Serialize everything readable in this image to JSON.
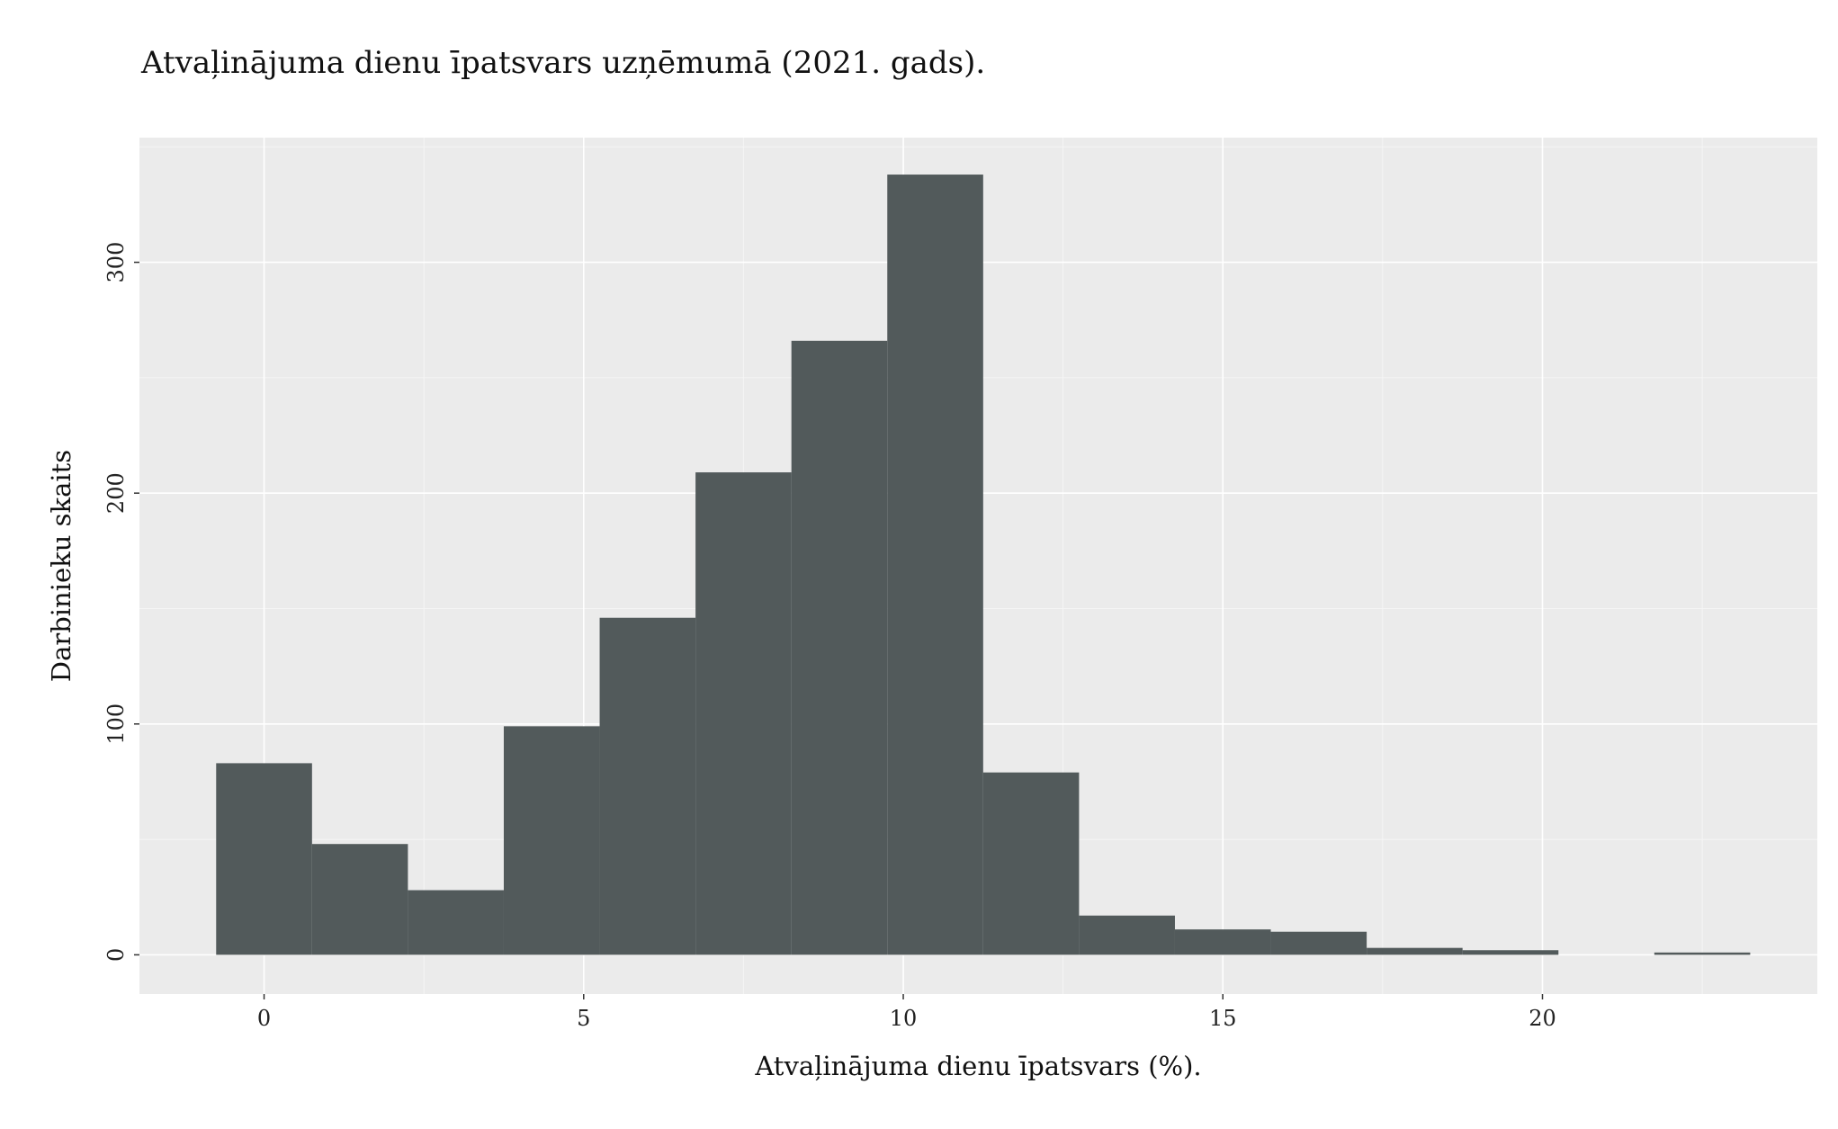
{
  "title": "Atvaļinājuma dienu īpatsvars uzņēmumā (2021. gads).",
  "chart_data": {
    "type": "bar",
    "title": "Atvaļinājuma dienu īpatsvars uzņēmumā (2021. gads).",
    "xlabel": "Atvaļinājuma dienu īpatsvars (%).",
    "ylabel": "Darbinieku skaits",
    "xlim": [
      -1.95,
      24.3
    ],
    "ylim": [
      -17,
      354
    ],
    "x_ticks": [
      0,
      5,
      10,
      15,
      20
    ],
    "y_ticks": [
      0,
      100,
      200,
      300
    ],
    "x_tick_labels": [
      "0",
      "5",
      "10",
      "15",
      "20"
    ],
    "y_tick_labels": [
      "0",
      "100",
      "200",
      "300"
    ],
    "grid": true,
    "bar_color": "#525a5b",
    "panel_color": "#ebebeb",
    "bins": [
      {
        "x0": -0.75,
        "x1": 0.75,
        "count": 83
      },
      {
        "x0": 0.75,
        "x1": 2.25,
        "count": 48
      },
      {
        "x0": 2.25,
        "x1": 3.75,
        "count": 28
      },
      {
        "x0": 3.75,
        "x1": 5.25,
        "count": 99
      },
      {
        "x0": 5.25,
        "x1": 6.75,
        "count": 146
      },
      {
        "x0": 6.75,
        "x1": 8.25,
        "count": 209
      },
      {
        "x0": 8.25,
        "x1": 9.75,
        "count": 266
      },
      {
        "x0": 9.75,
        "x1": 11.25,
        "count": 338
      },
      {
        "x0": 11.25,
        "x1": 12.75,
        "count": 79
      },
      {
        "x0": 12.75,
        "x1": 14.25,
        "count": 17
      },
      {
        "x0": 14.25,
        "x1": 15.75,
        "count": 11
      },
      {
        "x0": 15.75,
        "x1": 17.25,
        "count": 10
      },
      {
        "x0": 17.25,
        "x1": 18.75,
        "count": 3
      },
      {
        "x0": 18.75,
        "x1": 20.25,
        "count": 2
      },
      {
        "x0": 20.25,
        "x1": 21.75,
        "count": 0
      },
      {
        "x0": 21.75,
        "x1": 23.25,
        "count": 1
      }
    ]
  }
}
